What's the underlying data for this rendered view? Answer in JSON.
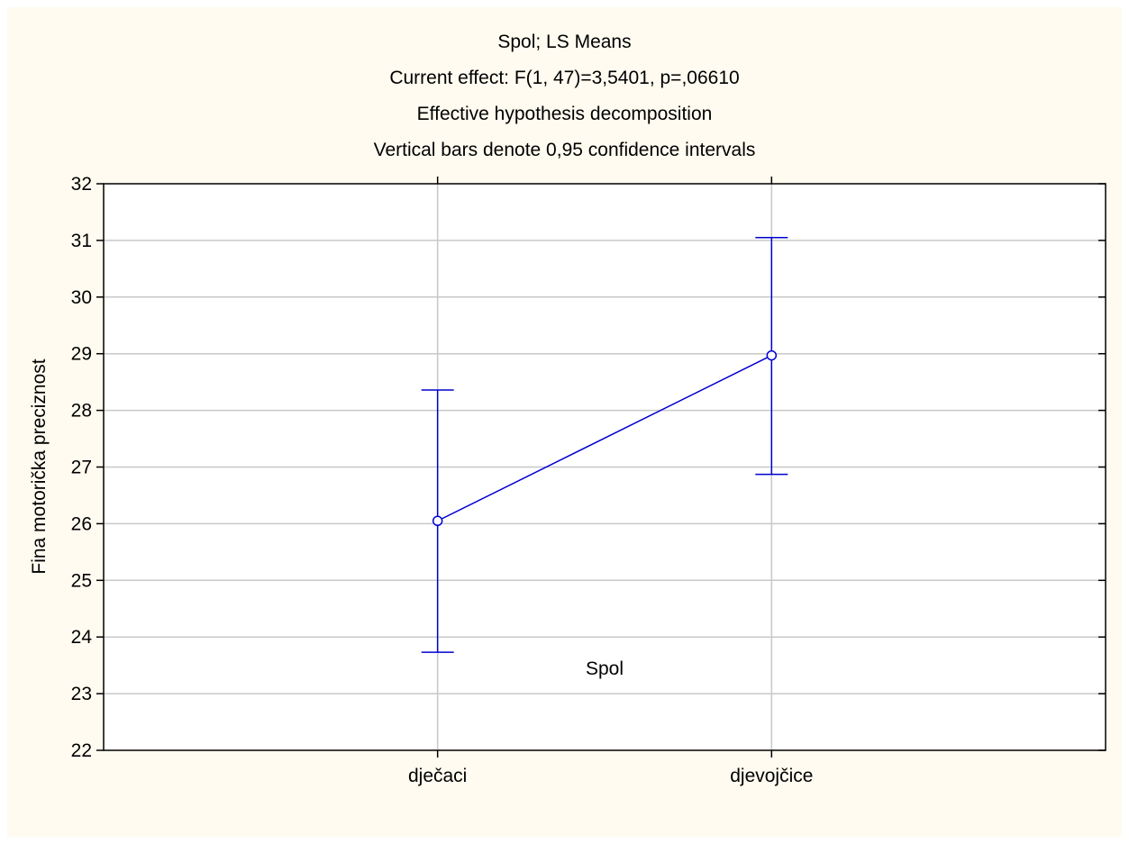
{
  "title_lines": [
    "Spol; LS Means",
    "Current effect: F(1, 47)=3,5401, p=,06610",
    "Effective hypothesis decomposition",
    "Vertical bars denote 0,95 confidence intervals"
  ],
  "colors": {
    "background": "#fffbf0",
    "plot_area": "#ffffff",
    "series": "#0000d0",
    "grid": "#c8c8c8",
    "axis": "#000000"
  },
  "chart_data": {
    "type": "line",
    "title": "Spol; LS Means",
    "xlabel": "Spol",
    "ylabel": "Fina motorička preciznost",
    "categories": [
      "dječaci",
      "djevojčice"
    ],
    "series": [
      {
        "values": [
          26.05,
          28.97
        ],
        "ci_lower": [
          23.73,
          26.87
        ],
        "ci_upper": [
          28.36,
          31.05
        ]
      }
    ],
    "ylim": [
      22,
      32
    ],
    "yticks": [
      22,
      23,
      24,
      25,
      26,
      27,
      28,
      29,
      30,
      31,
      32
    ],
    "grid": true
  }
}
